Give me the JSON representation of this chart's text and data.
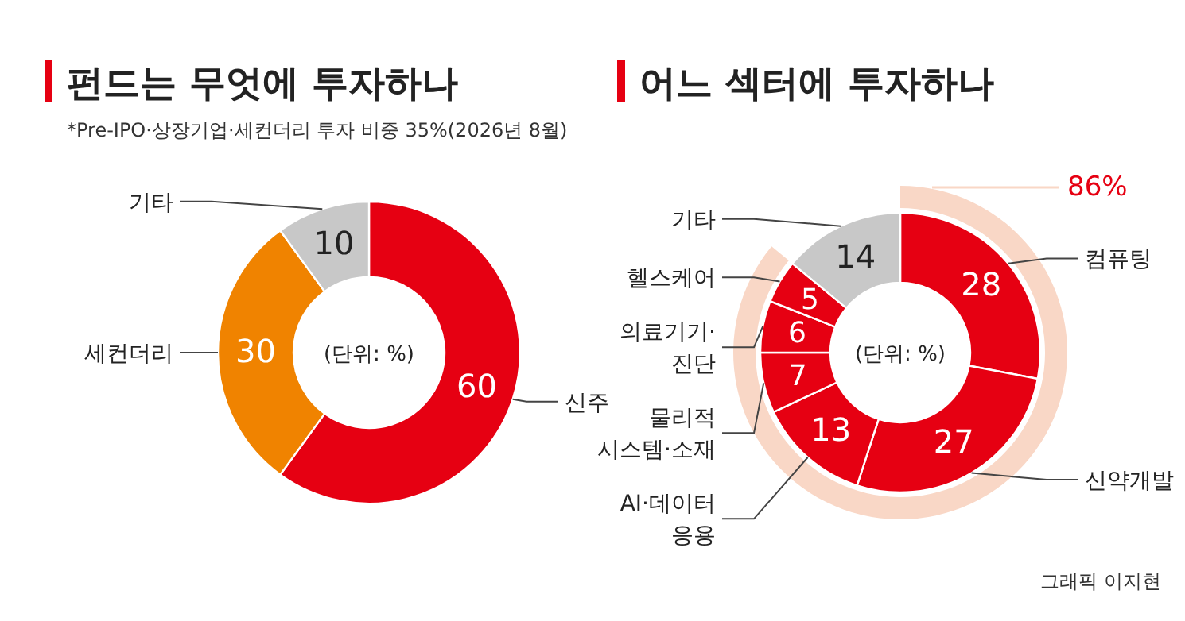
{
  "chart_data": [
    {
      "type": "donut",
      "title": "펀드는 무엇에 투자하나",
      "subtitle": "*Pre-IPO·상장기업·세컨더리 투자 비중 35%(2026년 8월)",
      "categories": [
        "신주",
        "세컨더리",
        "기타"
      ],
      "values": [
        60,
        30,
        10
      ],
      "colors": [
        "#e60012",
        "#f08300",
        "#c8c8c8"
      ],
      "data_labels": true,
      "annotations": [
        "(단위: %)"
      ]
    },
    {
      "type": "donut",
      "title": "어느 섹터에 투자하나",
      "categories": [
        "컴퓨팅",
        "신약개발",
        "AI·데이터\n응용",
        "물리적\n시스템·소재",
        "의료기기·\n진단",
        "헬스케어",
        "기타"
      ],
      "values": [
        28,
        27,
        13,
        7,
        6,
        5,
        14
      ],
      "colors": [
        "#e60012",
        "#e60012",
        "#e60012",
        "#e60012",
        "#e60012",
        "#e60012",
        "#c8c8c8"
      ],
      "data_labels": true,
      "annotations": [
        "(단위: %)",
        "86%",
        "그래픽 이지현"
      ]
    }
  ]
}
